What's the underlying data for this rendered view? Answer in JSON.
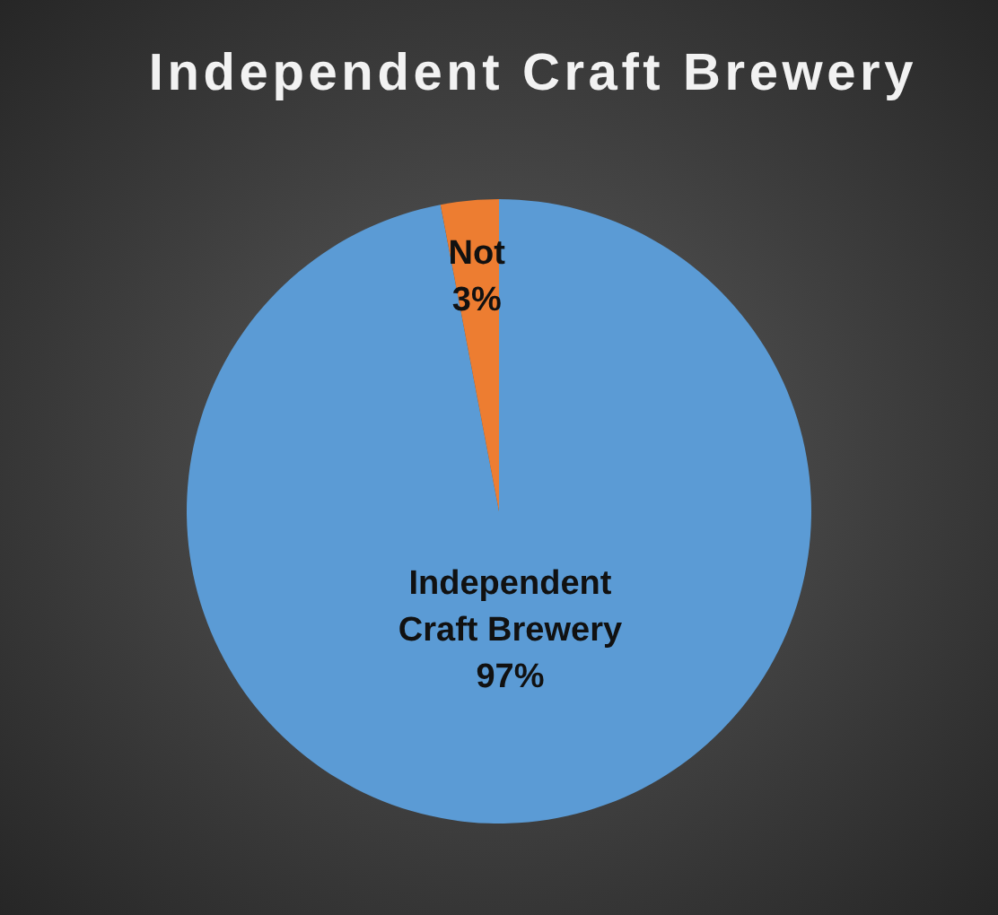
{
  "chart_data": {
    "type": "pie",
    "title": "Independent Craft Brewery",
    "categories": [
      "Independent Craft Brewery",
      "Not"
    ],
    "values": [
      97,
      3
    ],
    "colors": [
      "#5b9bd5",
      "#ed7d31"
    ],
    "value_labels": [
      "97%",
      "3%"
    ]
  }
}
